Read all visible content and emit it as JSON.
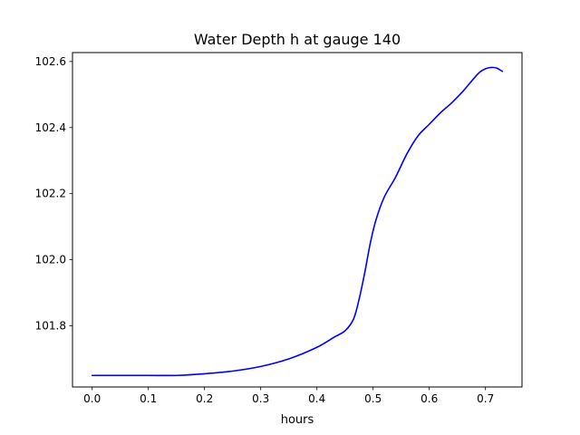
{
  "chart_data": {
    "type": "line",
    "title": "Water Depth h at gauge 140",
    "xlabel": "hours",
    "ylabel": "",
    "xlim": [
      -0.035,
      0.765
    ],
    "ylim": [
      101.615,
      102.627
    ],
    "grid": false,
    "legend": "none",
    "x_ticks": [
      0.0,
      0.1,
      0.2,
      0.3,
      0.4,
      0.5,
      0.6,
      0.7
    ],
    "x_tick_labels": [
      "0.0",
      "0.1",
      "0.2",
      "0.3",
      "0.4",
      "0.5",
      "0.6",
      "0.7"
    ],
    "y_ticks": [
      101.8,
      102.0,
      102.2,
      102.4,
      102.6
    ],
    "y_tick_labels": [
      "101.8",
      "102.0",
      "102.2",
      "102.4",
      "102.6"
    ],
    "series": [
      {
        "color": "#0000ff",
        "x": [
          0.0,
          0.05,
          0.1,
          0.15,
          0.2,
          0.25,
          0.3,
          0.35,
          0.4,
          0.43,
          0.45,
          0.465,
          0.475,
          0.485,
          0.495,
          0.505,
          0.52,
          0.54,
          0.56,
          0.58,
          0.6,
          0.62,
          0.64,
          0.66,
          0.68,
          0.69,
          0.7,
          0.71,
          0.72,
          0.73
        ],
        "y": [
          101.65,
          101.65,
          101.65,
          101.65,
          101.655,
          101.663,
          101.677,
          101.7,
          101.735,
          101.765,
          101.785,
          101.82,
          101.88,
          101.96,
          102.05,
          102.12,
          102.19,
          102.25,
          102.32,
          102.375,
          102.41,
          102.445,
          102.475,
          102.51,
          102.55,
          102.568,
          102.578,
          102.582,
          102.58,
          102.57
        ]
      }
    ]
  }
}
